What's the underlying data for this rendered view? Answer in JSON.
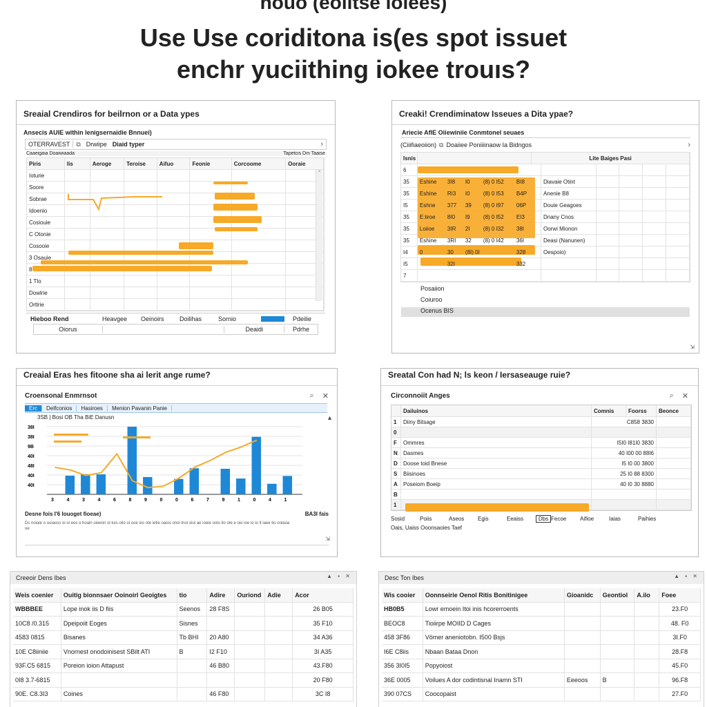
{
  "headline": {
    "top": "hoúo (eoiitse iolèes)",
    "line1": "Use Use coriditona is(es spot issuet",
    "line2": "enchr yuciithing iokee trouıs?"
  },
  "colors": {
    "accent_orange": "#f7a928",
    "accent_blue": "#1e88d6",
    "tab_bg": "#e7f1fb"
  },
  "panel1": {
    "title": "Sreaial Crendiros for beilrnon or a Data ypes",
    "subtitle": "Ansecis AUIE within lenigsernaidie Bnnuei)",
    "field": "OTERRAVEST",
    "field2": "Drwiipe",
    "field3": "Diaid typer",
    "toolbar_left": "Caaeigaia Doaiwiaada",
    "toolbar_right": "Tapetcis Dm Taaise",
    "columns": [
      "Piris",
      "lis",
      "Aeroge",
      "Teroise",
      "Aifuo",
      "Feonie",
      "Corcoome",
      "Ooraie"
    ],
    "rows": [
      "Ioturie",
      "Soore",
      "Sobrae",
      "Idoenio",
      "Cosiouie",
      "C Otonie",
      "Cosooie",
      "3 Osauie",
      "8 Octs",
      "1 Tlo",
      "Dowlrie",
      "Ortlrie"
    ],
    "footer": [
      "Hieboo Rend",
      "Heavgee",
      "Oeinoirs",
      "Doilihas",
      "Sornio",
      "Pdeilie"
    ],
    "footer2": [
      "Oiorus",
      "Deaidi",
      "Pdrhe"
    ]
  },
  "panel2": {
    "title": "Creaki! Crendiminatow Isseues a Dita ypae?",
    "subtitle": "Ariecie AfIE Oiiewiniie Conmtonel seuaes",
    "field": "(Ciiifiaeoiion)",
    "field2": "Doaiiee Poniiiinaow Ia Bidngos",
    "header_right": "Lite Baiges Pasi",
    "rows": [
      {
        "n": "6",
        "vals": [
          "",
          "",
          "",
          "",
          ""
        ],
        "label": ""
      },
      {
        "n": "35",
        "vals": [
          "Eshine",
          "3I8",
          "I0",
          "(8) 0 I52",
          "BI8"
        ],
        "label": "Diavaie Otint"
      },
      {
        "n": "35",
        "vals": [
          "Eshine",
          "RI3",
          "I0",
          "(8) 0 I53",
          "B4P"
        ],
        "label": "Anenie B8"
      },
      {
        "n": "I5",
        "vals": [
          "Eshne",
          "377",
          "39",
          "(8) 0 I97",
          "06P"
        ],
        "label": "Douie Geagoes"
      },
      {
        "n": "35",
        "vals": [
          "E:iiroe",
          "8I0",
          "I9",
          "(8) 0 I52",
          "EI3"
        ],
        "label": "Dnany Cnos"
      },
      {
        "n": "35",
        "vals": [
          "Loiioe",
          "3IR",
          "2I",
          "(8) 0 I32",
          "38I"
        ],
        "label": "Oorwi Mionon"
      },
      {
        "n": "35",
        "vals": [
          "Eshine",
          "3RI",
          "32",
          "(8) 0 I42",
          "36I"
        ],
        "label": "Deasi (Nanunen)"
      },
      {
        "n": "I4",
        "vals": [
          "0",
          "30",
          "(8I) 0I",
          "",
          "328"
        ],
        "label": "Oespoio)"
      },
      {
        "n": "I5",
        "vals": [
          "",
          "32I",
          "",
          "",
          "332"
        ],
        "label": ""
      },
      {
        "n": "7",
        "vals": [
          "",
          "",
          "",
          "",
          ""
        ],
        "label": ""
      }
    ],
    "extra": [
      "Posaiion",
      "Coiuroo",
      "Ocenus BIS"
    ]
  },
  "panel3": {
    "title": "Creaial Eras hes fitoone sha ai lerit ange rume?",
    "window_title": "Croensonal Enmrnsot",
    "tabs": [
      "Erc",
      "Delfconios",
      "Hasiroes",
      "Menion Pavanin Panie"
    ],
    "legend": "3SB | Bosi OB Tha BiE Danusn",
    "xlabel_left": "Desne fois I'6 Iouoget fioeae)",
    "xlabel_right": "BA3I fais",
    "caption": "Ds noiaie o ouiaoss oi oi eos o hoain oieenn oi tuis oiio oi ooe ios ote ietie oaios onoi tnoi oioi ae ioeie ooio ito ote e oio ioe io io it iaee tio ooiaoa oe"
  },
  "chart_data": {
    "type": "bar",
    "categories": [
      "3",
      "4",
      "3",
      "4",
      "6",
      "8",
      "9",
      "0",
      "0",
      "6",
      "7",
      "9",
      "1",
      "0",
      "4",
      "1"
    ],
    "series": [
      {
        "values": [
          0,
          13.8,
          14.9,
          14.8,
          0,
          50,
          12.8,
          0,
          11.4,
          19.3,
          0,
          18.9,
          11.7,
          42.5,
          7.8,
          13.6
        ]
      },
      {
        "values": [
          20,
          18,
          14,
          16,
          30,
          10,
          5,
          6,
          12,
          20,
          25,
          31,
          35,
          40,
          0,
          0
        ]
      }
    ],
    "ylabels": [
      "38I",
      "38I",
      "9B",
      "40I",
      "48I",
      "40I",
      "40I"
    ]
  },
  "panel4": {
    "title": "Sreatal Con had N; ls keon / Iersaseauge ruie?",
    "window_title": "Circonnoiit Anges",
    "header": [
      "",
      "Daiiuinos",
      "Comnis",
      "Foorss",
      "Beonce"
    ],
    "rows": [
      {
        "k": "1",
        "name": "Diiny Bitsage",
        "val": "C858 3830"
      },
      {
        "k": "0",
        "name": "",
        "val": ""
      },
      {
        "k": "F",
        "name": "Ommres",
        "val": "I5I0 I81I0 3830"
      },
      {
        "k": "N",
        "name": "Dasmes",
        "val": "40 I00 00 88I6"
      },
      {
        "k": "D",
        "name": "Doose toid Bnese",
        "val": "I5 I0 00 3800"
      },
      {
        "k": "S",
        "name": "Biisinoes",
        "val": "25 I0 88 8300"
      },
      {
        "k": "A",
        "name": "Poseiom Boeip",
        "val": "40 I0 30 8880"
      },
      {
        "k": "B",
        "name": "",
        "val": ""
      },
      {
        "k": "1",
        "name": "",
        "val": ""
      }
    ],
    "footer": [
      "Sosid",
      "Poiis",
      "Aseos",
      "Egis",
      "Eeaiss",
      "Dbs",
      "Fecoe",
      "Aifioe",
      "Iaias",
      "Paihies"
    ],
    "footer2": "Oais, Uaiss Ooonsaoies Taef"
  },
  "panel5": {
    "title": "Creeoir Dens Ibes",
    "controls": "▲ ▪ ✕",
    "columns": [
      "Weis coenier",
      "Ouitig bionnsaer Ooinoirl Geoigtes",
      "tio",
      "Adire",
      "Ouriond",
      "Adie",
      "Acor"
    ],
    "rows": [
      [
        "WBBBEE",
        "Lope inok iis D fiis",
        "Seenos",
        "28 F8S",
        "",
        "",
        "26 B05"
      ],
      [
        "10C8 /0.315",
        "Dpeipoiit Eoges",
        "Sisnes",
        "",
        "",
        "",
        "35 F10"
      ],
      [
        "4583 0815",
        "Bisanes",
        "Tb BHI",
        "20 A80",
        "",
        "",
        "34 A36"
      ],
      [
        "10E C8iiniie",
        "Vnornest onodoinisest SBilt ATI",
        "B",
        "I2 F10",
        "",
        "",
        "3I A35"
      ],
      [
        "93F.C5 6815",
        "Poreion ioion Attapust",
        "",
        "46 B80",
        "",
        "",
        "43.F80"
      ],
      [
        "0I8 3.7-6815",
        "",
        "",
        "",
        "",
        "",
        "20 F80"
      ],
      [
        "90E. C8.3I3",
        "Coines",
        "",
        "46 F80",
        "",
        "",
        "3C I8"
      ]
    ],
    "extra_b": "B"
  },
  "panel6": {
    "title": "Desc Ton Ibes",
    "controls": "▲ ▪ ✕",
    "columns": [
      "Wis cooier",
      "Oonnseirie Oenol Ritis Bonitinigee",
      "Gioanidc",
      "Geontiol",
      "A.ilo",
      "Foee"
    ],
    "rows": [
      [
        "HB0B5",
        "Lowr emoein Itoi inis hcorerroents",
        "",
        "",
        "",
        "23.F0"
      ],
      [
        "BEOC8",
        "Tioiirpe MOIID D Cages",
        "",
        "",
        "",
        "48. F0"
      ],
      [
        "458 3F86",
        "Vömer aneniotobn. I500 Bsjs",
        "",
        "",
        "",
        "3I.F0"
      ],
      [
        "I6E C8iis",
        "Nbaan Bataa Dnon",
        "",
        "",
        "",
        "28.F8"
      ],
      [
        "356 3I0I5",
        "Popyoiost",
        "",
        "",
        "",
        "45.F0"
      ],
      [
        "36E 0005",
        "Voilues A dor codintisnal Inamn STI",
        "Eeeoos",
        "B",
        "",
        "96.F8"
      ],
      [
        "390 07CS",
        "Coocopaist",
        "",
        "",
        "",
        "27.F0"
      ]
    ]
  }
}
